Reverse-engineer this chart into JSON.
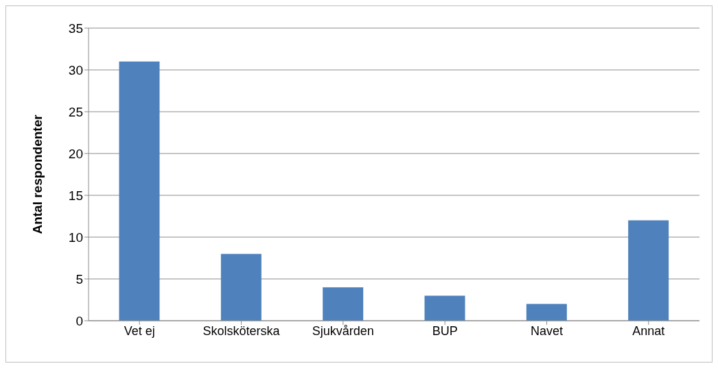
{
  "chart_data": {
    "type": "bar",
    "ylabel": "Antal respondenter",
    "categories": [
      "Vet ej",
      "Skolsköterska",
      "Sjukvården",
      "BUP",
      "Navet",
      "Annat"
    ],
    "values": [
      31,
      8,
      4,
      3,
      2,
      12
    ],
    "color": "#4f81bd",
    "ylim": [
      0,
      35
    ],
    "yticks": [
      0,
      5,
      10,
      15,
      20,
      25,
      30,
      35
    ],
    "grid": "y"
  }
}
